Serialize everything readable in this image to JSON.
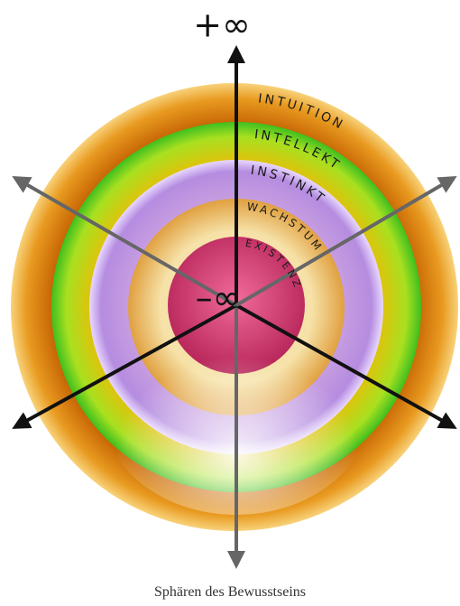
{
  "axis_labels": {
    "top": "+∞",
    "center": "–∞"
  },
  "spheres": [
    {
      "label": "INTUITION"
    },
    {
      "label": "INTELLEKT"
    },
    {
      "label": "INSTINKT"
    },
    {
      "label": "WACHSTUM"
    },
    {
      "label": "EXISTENZ"
    }
  ],
  "caption": "Sphären des Bewusstseins"
}
